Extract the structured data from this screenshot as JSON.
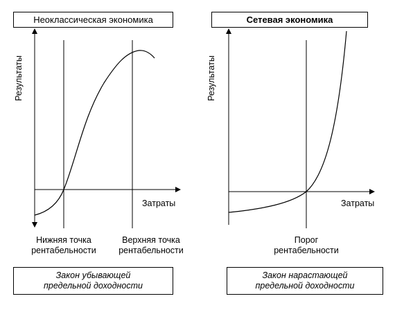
{
  "left_panel": {
    "title": "Неоклассическая экономика",
    "y_axis_label": "Результаты",
    "x_axis_label": "Затраты",
    "lower_point_label": [
      "Нижняя точка",
      "рентабельности"
    ],
    "upper_point_label": [
      "Верхняя точка",
      "рентабельности"
    ],
    "law": [
      "Закон убывающей",
      "предельной доходности"
    ]
  },
  "right_panel": {
    "title": "Сетевая экономика",
    "y_axis_label": "Результаты",
    "x_axis_label": "Затраты",
    "threshold_label": [
      "Порог",
      "рентабельности"
    ],
    "law": [
      "Закон нарастающей",
      "предельной доходности"
    ]
  }
}
